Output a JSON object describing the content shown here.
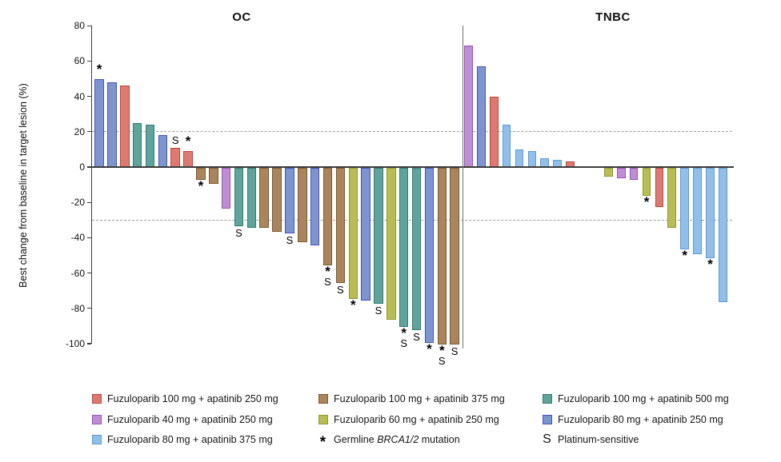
{
  "chart_data": {
    "type": "bar",
    "subtype": "waterfall",
    "ylabel": "Best change from baseline in target lesion (%)",
    "ylim": [
      -100,
      80
    ],
    "yticks": [
      80,
      60,
      40,
      20,
      0,
      -20,
      -40,
      -60,
      -80,
      -100
    ],
    "reference_lines": [
      20,
      -30
    ],
    "marker_legend": {
      "asterisk": "Germline BRCA1/2 mutation",
      "S": "Platinum-sensitive"
    },
    "groups": {
      "f100a250": {
        "label": "Fuzuloparib 100 mg + apatinib 250 mg",
        "fill": "#DC7A72",
        "border": "#C0453C"
      },
      "f100a375": {
        "label": "Fuzuloparib 100 mg + apatinib 375 mg",
        "fill": "#A9845C",
        "border": "#7D5A2E"
      },
      "f100a500": {
        "label": "Fuzuloparib 100 mg + apatinib 500 mg",
        "fill": "#5FA39B",
        "border": "#2F7D72"
      },
      "f40a250": {
        "label": "Fuzuloparib 40 mg + apatinib 250 mg",
        "fill": "#BD8FD2",
        "border": "#9C4FC0"
      },
      "f60a250": {
        "label": "Fuzuloparib 60 mg + apatinib 250 mg",
        "fill": "#B8BC55",
        "border": "#8F9A2E"
      },
      "f80a250": {
        "label": "Fuzuloparib 80 mg + apatinib 250 mg",
        "fill": "#7E94CC",
        "border": "#4353C4"
      },
      "f80a375": {
        "label": "Fuzuloparib 80 mg + apatinib 375 mg",
        "fill": "#92BFE8",
        "border": "#5B9BD5"
      }
    },
    "panels": [
      {
        "title": "OC",
        "bars": [
          {
            "value": 50,
            "group": "f80a250",
            "marker": "*"
          },
          {
            "value": 48,
            "group": "f80a250"
          },
          {
            "value": 46,
            "group": "f100a250"
          },
          {
            "value": 25,
            "group": "f100a500"
          },
          {
            "value": 24,
            "group": "f100a500"
          },
          {
            "value": 18,
            "group": "f80a250"
          },
          {
            "value": 11,
            "group": "f100a250",
            "marker": "S"
          },
          {
            "value": 9,
            "group": "f100a250",
            "marker": "*"
          },
          {
            "value": -7,
            "group": "f100a375",
            "marker": "*"
          },
          {
            "value": -9,
            "group": "f100a375"
          },
          {
            "value": -23,
            "group": "f40a250"
          },
          {
            "value": -33,
            "group": "f100a500",
            "marker": "S"
          },
          {
            "value": -34,
            "group": "f100a500"
          },
          {
            "value": -34,
            "group": "f100a375"
          },
          {
            "value": -36,
            "group": "f100a375"
          },
          {
            "value": -37,
            "group": "f80a250",
            "marker": "S"
          },
          {
            "value": -42,
            "group": "f100a375"
          },
          {
            "value": -44,
            "group": "f80a250"
          },
          {
            "value": -55,
            "group": "f100a375",
            "marker": "*S"
          },
          {
            "value": -65,
            "group": "f100a375",
            "marker": "S"
          },
          {
            "value": -74,
            "group": "f60a250",
            "marker": "*"
          },
          {
            "value": -75,
            "group": "f80a250"
          },
          {
            "value": -77,
            "group": "f100a500",
            "marker": "S"
          },
          {
            "value": -86,
            "group": "f60a250"
          },
          {
            "value": -90,
            "group": "f100a500",
            "marker": "*S"
          },
          {
            "value": -92,
            "group": "f100a500",
            "marker": "S"
          },
          {
            "value": -99,
            "group": "f80a250",
            "marker": "*"
          },
          {
            "value": -100,
            "group": "f100a375",
            "marker": "*S"
          },
          {
            "value": -100,
            "group": "f100a375",
            "marker": "S"
          }
        ]
      },
      {
        "title": "TNBC",
        "gap_after": 9,
        "gap_slots": 2,
        "bars": [
          {
            "value": 69,
            "group": "f40a250"
          },
          {
            "value": 57,
            "group": "f80a250"
          },
          {
            "value": 40,
            "group": "f100a250"
          },
          {
            "value": 24,
            "group": "f80a375"
          },
          {
            "value": 10,
            "group": "f80a375"
          },
          {
            "value": 9,
            "group": "f80a375"
          },
          {
            "value": 5,
            "group": "f80a375"
          },
          {
            "value": 4,
            "group": "f80a375"
          },
          {
            "value": 3,
            "group": "f100a250"
          },
          {
            "value": -5,
            "group": "f60a250"
          },
          {
            "value": -6,
            "group": "f40a250"
          },
          {
            "value": -7,
            "group": "f40a250"
          },
          {
            "value": -16,
            "group": "f60a250",
            "marker": "*"
          },
          {
            "value": -22,
            "group": "f100a250"
          },
          {
            "value": -34,
            "group": "f60a250"
          },
          {
            "value": -46,
            "group": "f80a375",
            "marker": "*"
          },
          {
            "value": -49,
            "group": "f80a375"
          },
          {
            "value": -51,
            "group": "f80a375",
            "marker": "*"
          },
          {
            "value": -76,
            "group": "f80a375"
          }
        ]
      }
    ]
  },
  "legend": {
    "asterisk_symbol": "*",
    "s_symbol": "S",
    "brca_prefix": "Germline ",
    "brca_gene": "BRCA1/2",
    "brca_suffix": " mutation",
    "s_label": "Platinum-sensitive"
  }
}
